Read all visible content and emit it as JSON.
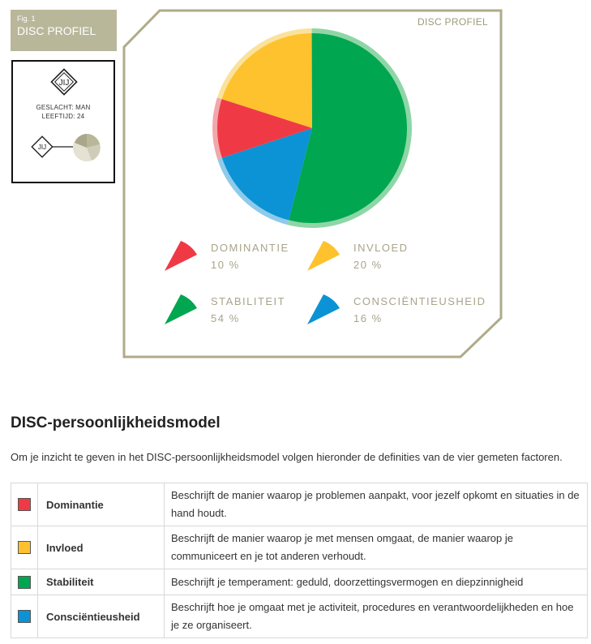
{
  "figure": {
    "number": "Fig. 1",
    "title": "DISC PROFIEL"
  },
  "person": {
    "badge": "JIJ",
    "gender_line": "GESLACHT: MAN",
    "age_line": "LEEFTIJD: 24",
    "mini_badge": "JIJ"
  },
  "chart_data": {
    "type": "pie",
    "title": "DISC PROFIEL",
    "categories": [
      "DOMINANTIE",
      "INVLOED",
      "STABILITEIT",
      "CONSCIËNTIEUSHEID"
    ],
    "values": [
      10,
      20,
      54,
      16
    ],
    "value_labels": [
      "10 %",
      "20 %",
      "54 %",
      "16 %"
    ],
    "colors": [
      "#ef3a46",
      "#fdc22d",
      "#00a650",
      "#0b93d5"
    ],
    "ring_colors": [
      "#f2a7ab",
      "#fbe29c",
      "#8fd6a7",
      "#8fcbe9"
    ],
    "legend_placement": "bottom"
  },
  "section": {
    "title": "DISC-persoonlijkheidsmodel",
    "intro": "Om je inzicht te geven in het DISC-persoonlijkheidsmodel volgen hieronder de definities van de vier gemeten factoren."
  },
  "definitions": [
    {
      "name": "Dominantie",
      "color": "#ef3a46",
      "text": "Beschrijft de manier waarop je problemen aanpakt, voor jezelf opkomt en situaties in de hand houdt."
    },
    {
      "name": "Invloed",
      "color": "#fdc22d",
      "text": "Beschrijft de manier waarop je met mensen omgaat, de manier waarop je communiceert en je tot anderen verhoudt."
    },
    {
      "name": "Stabiliteit",
      "color": "#00a650",
      "text": "Beschrijft je temperament: geduld, doorzettingsvermogen en diepzinnigheid"
    },
    {
      "name": "Consciëntieusheid",
      "color": "#0b93d5",
      "text": "Beschrijft hoe je omgaat met je activiteit, procedures en verantwoordelijkheden en hoe je ze organiseert."
    }
  ]
}
